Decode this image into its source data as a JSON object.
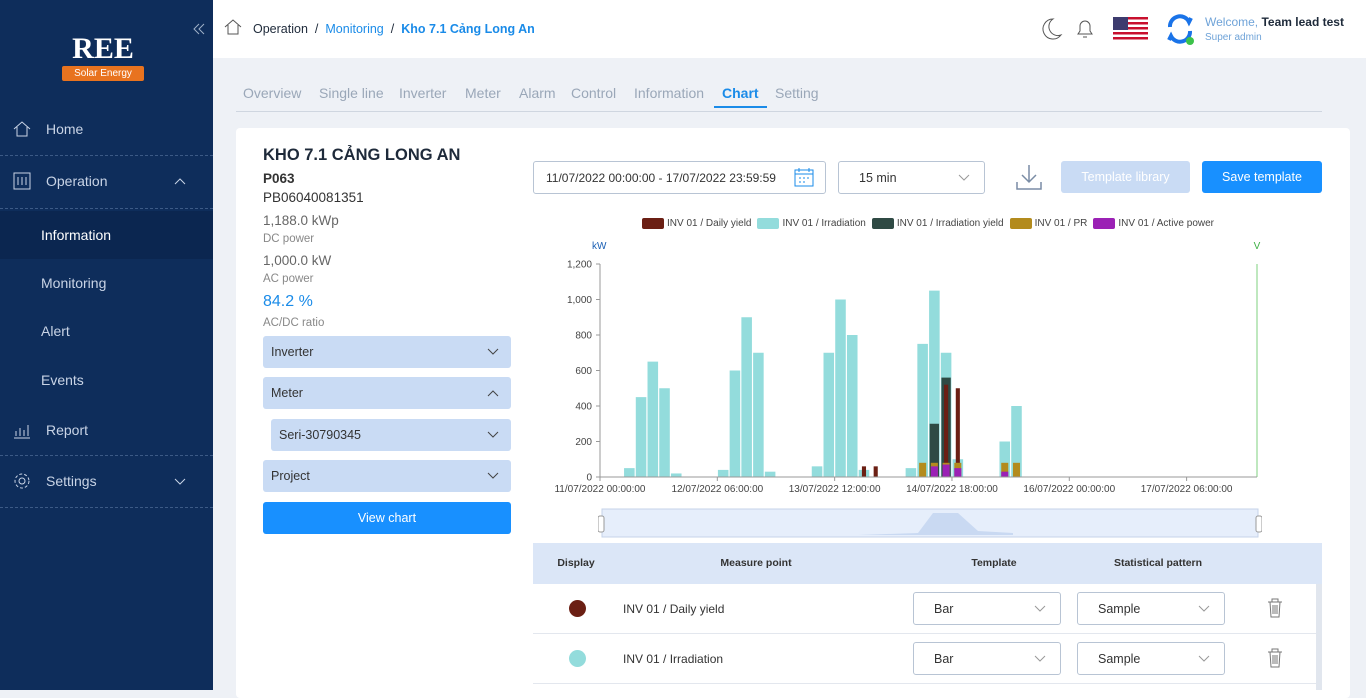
{
  "sidebar": {
    "logo": {
      "brand": "REE",
      "tagline": "Solar Energy"
    },
    "menu": [
      {
        "label": "Home"
      },
      {
        "label": "Operation"
      },
      {
        "label": "Information"
      },
      {
        "label": "Monitoring"
      },
      {
        "label": "Alert"
      },
      {
        "label": "Events"
      },
      {
        "label": "Report"
      },
      {
        "label": "Settings"
      }
    ]
  },
  "header": {
    "breadcrumb": [
      "Operation",
      "Monitoring",
      "Kho 7.1 Cảng Long An"
    ],
    "separator": "/",
    "welcome": "Welcome,",
    "user": "Team lead test",
    "role": "Super admin"
  },
  "tabs": [
    "Overview",
    "Single line",
    "Inverter",
    "Meter",
    "Alarm",
    "Control",
    "Information",
    "Chart",
    "Setting"
  ],
  "active_tab": "Chart",
  "info": {
    "title": "KHO 7.1 CẢNG LONG AN",
    "code": "P063",
    "serial": "PB06040081351",
    "dc_value": "1,188.0 kWp",
    "dc_label": "DC power",
    "ac_value": "1,000.0 kW",
    "ac_label": "AC power",
    "ratio_value": "84.2 %",
    "ratio_label": "AC/DC ratio",
    "dropdowns": [
      "Inverter",
      "Meter",
      "Seri-30790345",
      "Project"
    ],
    "button": "View chart"
  },
  "controls": {
    "date_range": "11/07/2022 00:00:00 - 17/07/2022 23:59:59",
    "interval": "15 min",
    "template_library": "Template library",
    "save_template": "Save template"
  },
  "chart_data": {
    "type": "bar",
    "ylabel": "kW",
    "y2label": "V",
    "ylim": [
      0,
      1200
    ],
    "yticks": [
      0,
      200,
      400,
      600,
      800,
      {
        "value": 1000,
        "label": "1,000"
      },
      {
        "value": 1200,
        "label": "1,200"
      }
    ],
    "categories": [
      "11/07/2022 00:00:00",
      null,
      null,
      null,
      null,
      null,
      null,
      null,
      null,
      null,
      "12/07/2022 06:00:00",
      null,
      null,
      null,
      null,
      null,
      null,
      null,
      null,
      null,
      "13/07/2022 12:00:00",
      null,
      null,
      null,
      null,
      null,
      null,
      null,
      null,
      null,
      "14/07/2022 18:00:00",
      null,
      null,
      null,
      null,
      null,
      null,
      null,
      null,
      null,
      "16/07/2022 00:00:00",
      null,
      null,
      null,
      null,
      null,
      null,
      null,
      null,
      null,
      "17/07/2022 06:00:00",
      null,
      null,
      null,
      null,
      null
    ],
    "series": [
      {
        "name": "INV 01 / Irradiation",
        "color": "#93dcdc",
        "values": [
          0,
          0,
          50,
          450,
          650,
          500,
          20,
          0,
          0,
          0,
          40,
          600,
          900,
          700,
          30,
          0,
          0,
          0,
          60,
          700,
          1000,
          800,
          40,
          0,
          0,
          0,
          50,
          750,
          1050,
          700,
          100,
          0,
          0,
          0,
          200,
          400,
          0,
          0,
          0,
          0,
          0,
          0,
          0,
          0,
          0,
          0,
          0,
          0,
          0,
          0,
          0,
          0,
          0,
          0,
          0,
          0
        ]
      },
      {
        "name": "INV 01 / Irradiation yield",
        "color": "#2f4a44",
        "values": [
          0,
          0,
          0,
          0,
          0,
          0,
          0,
          0,
          0,
          0,
          0,
          0,
          0,
          0,
          0,
          0,
          0,
          0,
          0,
          0,
          0,
          0,
          0,
          0,
          0,
          0,
          0,
          0,
          300,
          560,
          0,
          0,
          0,
          0,
          0,
          0,
          0,
          0,
          0,
          0,
          0,
          0,
          0,
          0,
          0,
          0,
          0,
          0,
          0,
          0,
          0,
          0,
          0,
          0,
          0,
          0
        ]
      },
      {
        "name": "INV 01 / Daily yield",
        "color": "#6b1f14",
        "values": [
          0,
          0,
          0,
          0,
          0,
          0,
          0,
          0,
          0,
          0,
          0,
          0,
          0,
          0,
          0,
          0,
          0,
          0,
          0,
          0,
          0,
          0,
          60,
          60,
          0,
          0,
          0,
          0,
          0,
          520,
          500,
          0,
          0,
          0,
          0,
          0,
          0,
          0,
          0,
          0,
          0,
          0,
          0,
          0,
          0,
          0,
          0,
          0,
          0,
          0,
          0,
          0,
          0,
          0,
          0,
          0
        ]
      },
      {
        "name": "INV 01 / PR",
        "color": "#b38b1d",
        "values": [
          0,
          0,
          0,
          0,
          0,
          0,
          0,
          0,
          0,
          0,
          0,
          0,
          0,
          0,
          0,
          0,
          0,
          0,
          0,
          0,
          0,
          0,
          0,
          0,
          0,
          0,
          0,
          80,
          80,
          80,
          80,
          0,
          0,
          0,
          80,
          80,
          0,
          0,
          0,
          0,
          0,
          0,
          0,
          0,
          0,
          0,
          0,
          0,
          0,
          0,
          0,
          0,
          0,
          0,
          0,
          0
        ]
      },
      {
        "name": "INV 01 / Active power",
        "color": "#9b21b5",
        "values": [
          0,
          0,
          0,
          0,
          0,
          0,
          0,
          0,
          0,
          0,
          0,
          0,
          0,
          0,
          0,
          0,
          0,
          0,
          0,
          0,
          0,
          0,
          0,
          0,
          0,
          0,
          0,
          0,
          60,
          70,
          50,
          0,
          0,
          0,
          30,
          0,
          0,
          0,
          0,
          0,
          0,
          0,
          0,
          0,
          0,
          0,
          0,
          0,
          0,
          0,
          0,
          0,
          0,
          0,
          0,
          0
        ]
      }
    ],
    "legend_order": [
      2,
      0,
      1,
      3,
      4
    ]
  },
  "table": {
    "columns": [
      "Display",
      "Measure point",
      "Template",
      "Statistical pattern"
    ],
    "rows": [
      {
        "color": "#6b1f14",
        "name": "INV 01 / Daily yield",
        "template": "Bar",
        "pattern": "Sample"
      },
      {
        "color": "#93dcdc",
        "name": "INV 01 / Irradiation",
        "template": "Bar",
        "pattern": "Sample"
      }
    ]
  }
}
